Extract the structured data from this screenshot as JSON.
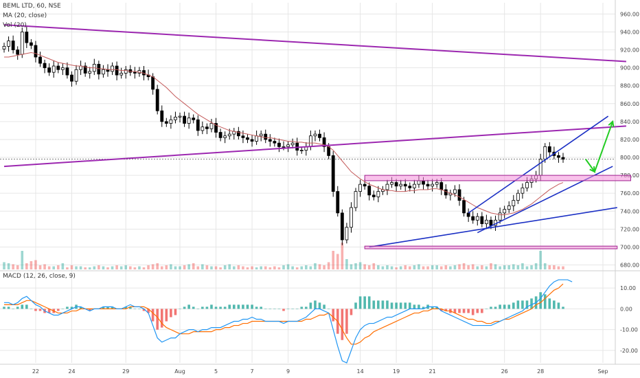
{
  "header": {
    "symbol": "BEML LTD, 60, NSE",
    "ma": "MA (20, close)",
    "vol": "Vol (20)",
    "macd": "MACD (12, 26, close, 9)"
  },
  "colors": {
    "up": "#26a69a",
    "down": "#ef5350",
    "candle": "#000000",
    "ma": "#c45a5a",
    "macd": "#2196f3",
    "signal": "#ff6d00",
    "trend_purple": "#9c27b0",
    "channel_blue": "#1a2fc4",
    "zone_pink": "#f48fda",
    "arrow_green": "#22cc22",
    "grid": "#e6e6e6"
  },
  "chart_data": [
    {
      "type": "candlestick",
      "title": "BEML LTD, 60, NSE",
      "y_axis_ticks": [
        "960.00",
        "940.00",
        "920.00",
        "900.00",
        "880.00",
        "860.00",
        "840.00",
        "820.00",
        "800.00",
        "780.00",
        "760.00",
        "740.00",
        "720.00",
        "700.00",
        "680.00"
      ],
      "ylim": [
        675,
        968
      ],
      "x_axis_labels": [
        "22",
        "24",
        "29",
        "Aug",
        "5",
        "7",
        "9",
        "14",
        "19",
        "21",
        "26",
        "28",
        "Sep"
      ],
      "reference_line": 798,
      "close_series": [
        924,
        930,
        920,
        915,
        940,
        928,
        925,
        912,
        905,
        900,
        895,
        902,
        898,
        900,
        892,
        885,
        898,
        902,
        894,
        896,
        904,
        893,
        898,
        896,
        902,
        892,
        894,
        898,
        895,
        894,
        897,
        892,
        890,
        876,
        852,
        840,
        838,
        842,
        845,
        846,
        838,
        844,
        842,
        830,
        834,
        832,
        838,
        828,
        822,
        824,
        826,
        829,
        824,
        822,
        820,
        818,
        824,
        826,
        820,
        818,
        816,
        812,
        812,
        814,
        816,
        808,
        808,
        812,
        824,
        826,
        822,
        812,
        802,
        762,
        738,
        708,
        722,
        744,
        762,
        770,
        768,
        758,
        756,
        762,
        764,
        770,
        772,
        768,
        770,
        768,
        766,
        770,
        774,
        770,
        768,
        770,
        772,
        764,
        758,
        760,
        764,
        752,
        738,
        734,
        730,
        734,
        726,
        730,
        724,
        730,
        738,
        742,
        746,
        752,
        760,
        766,
        772,
        776,
        780,
        798,
        812,
        806,
        802,
        800,
        798
      ],
      "ma_series": [
        912,
        912,
        913,
        914,
        915,
        916,
        917,
        916,
        914,
        912,
        910,
        908,
        906,
        905,
        904,
        903,
        902,
        902,
        901,
        900,
        900,
        899,
        899,
        898,
        898,
        898,
        897,
        897,
        896,
        896,
        895,
        894,
        892,
        890,
        886,
        882,
        878,
        873,
        868,
        864,
        860,
        856,
        852,
        848,
        845,
        842,
        839,
        836,
        834,
        832,
        830,
        829,
        828,
        827,
        826,
        825,
        824,
        823,
        822,
        822,
        821,
        820,
        819,
        818,
        818,
        817,
        817,
        816,
        816,
        816,
        815,
        814,
        812,
        808,
        802,
        796,
        790,
        784,
        780,
        776,
        773,
        770,
        768,
        766,
        764,
        763,
        763,
        762,
        762,
        762,
        763,
        763,
        764,
        764,
        764,
        765,
        765,
        764,
        762,
        760,
        758,
        756,
        753,
        750,
        747,
        744,
        742,
        740,
        738,
        737,
        736,
        736,
        737,
        738,
        740,
        742,
        745,
        748,
        752,
        756,
        760,
        764,
        767,
        770,
        772
      ],
      "annotations": [
        {
          "kind": "trendline",
          "color": "purple",
          "from": [
            0,
            948
          ],
          "to": [
            138,
            907
          ]
        },
        {
          "kind": "trendline",
          "color": "purple",
          "from": [
            0,
            790
          ],
          "to": [
            138,
            835
          ]
        },
        {
          "kind": "trendline",
          "color": "blue",
          "from": [
            105,
            716
          ],
          "to": [
            135,
            790
          ]
        },
        {
          "kind": "trendline",
          "color": "blue",
          "from": [
            103,
            738
          ],
          "to": [
            134,
            846
          ]
        },
        {
          "kind": "trendline",
          "color": "blue",
          "from": [
            81,
            700
          ],
          "to": [
            136,
            744
          ]
        },
        {
          "kind": "zone",
          "color": "pink",
          "from": [
            80,
            780
          ],
          "to": [
            139,
            774
          ]
        },
        {
          "kind": "zone",
          "color": "pink",
          "from": [
            80,
            701
          ],
          "to": [
            136,
            698
          ]
        },
        {
          "kind": "arrow",
          "color": "green",
          "points": [
            [
              129,
              798
            ],
            [
              131,
              784
            ],
            [
              135,
              840
            ]
          ]
        }
      ]
    },
    {
      "type": "bar",
      "title": "Vol (20)",
      "values": [
        7,
        6,
        5,
        4,
        18,
        6,
        8,
        9,
        4,
        5,
        3,
        3,
        4,
        6,
        2,
        4,
        3,
        3,
        2,
        2,
        3,
        4,
        3,
        2,
        3,
        4,
        3,
        4,
        3,
        2,
        3,
        2,
        4,
        5,
        6,
        3,
        4,
        5,
        3,
        3,
        4,
        5,
        6,
        3,
        5,
        4,
        3,
        3,
        2,
        4,
        5,
        3,
        4,
        3,
        2,
        3,
        2,
        3,
        3,
        2,
        3,
        2,
        4,
        5,
        3,
        2,
        3,
        4,
        3,
        6,
        5,
        4,
        7,
        18,
        15,
        26,
        10,
        5,
        6,
        7,
        5,
        4,
        6,
        4,
        3,
        4,
        3,
        2,
        3,
        4,
        3,
        4,
        5,
        3,
        3,
        4,
        4,
        3,
        4,
        3,
        4,
        5,
        6,
        4,
        5,
        3,
        4,
        3,
        6,
        5,
        3,
        4,
        4,
        5,
        4,
        6,
        3,
        4,
        6,
        18,
        6,
        4,
        4,
        3,
        3
      ],
      "ylim": [
        0,
        40
      ]
    },
    {
      "type": "line",
      "title": "MACD (12, 26, close, 9)",
      "y_axis_ticks": [
        "10.00",
        "0.00",
        "-10.00",
        "-20.00"
      ],
      "ylim": [
        -26,
        17
      ],
      "macd": [
        3,
        3,
        2,
        3,
        5,
        6,
        4,
        2,
        1,
        -1,
        -2,
        -3,
        -3,
        -2,
        -1,
        0,
        1,
        1,
        0,
        -1,
        0,
        0,
        1,
        1,
        1,
        0,
        0,
        1,
        2,
        1,
        1,
        0,
        -2,
        -8,
        -14,
        -16,
        -15,
        -14,
        -14,
        -12,
        -11,
        -10,
        -10,
        -11,
        -10,
        -10,
        -9,
        -9,
        -9,
        -8,
        -7,
        -6,
        -6,
        -5,
        -5,
        -4,
        -5,
        -5,
        -6,
        -6,
        -6,
        -6,
        -7,
        -6,
        -6,
        -6,
        -5,
        -4,
        -2,
        0,
        0,
        -1,
        -2,
        -10,
        -18,
        -25,
        -26,
        -20,
        -14,
        -10,
        -8,
        -7,
        -7,
        -6,
        -5,
        -4,
        -4,
        -3,
        -2,
        -1,
        0,
        0,
        0,
        0,
        1,
        1,
        1,
        -1,
        -2,
        -3,
        -4,
        -5,
        -6,
        -7,
        -8,
        -8,
        -8,
        -8,
        -8,
        -7,
        -6,
        -5,
        -4,
        -3,
        -2,
        -1,
        1,
        2,
        3,
        5,
        8,
        11,
        13,
        14,
        14,
        14,
        13
      ],
      "signal": [
        2,
        2,
        2,
        2,
        3,
        4,
        4,
        3,
        2,
        1,
        0,
        -1,
        -2,
        -2,
        -2,
        -1,
        -1,
        0,
        0,
        0,
        0,
        0,
        0,
        0,
        0,
        0,
        0,
        0,
        1,
        1,
        1,
        1,
        0,
        -2,
        -4,
        -7,
        -9,
        -10,
        -11,
        -12,
        -12,
        -12,
        -11,
        -11,
        -11,
        -11,
        -11,
        -10,
        -10,
        -9,
        -9,
        -8,
        -8,
        -7,
        -7,
        -6,
        -6,
        -6,
        -6,
        -6,
        -6,
        -6,
        -6,
        -6,
        -6,
        -6,
        -6,
        -5,
        -5,
        -4,
        -3,
        -3,
        -2,
        -4,
        -6,
        -10,
        -14,
        -17,
        -17,
        -16,
        -14,
        -13,
        -11,
        -10,
        -9,
        -8,
        -7,
        -6,
        -5,
        -4,
        -3,
        -2,
        -2,
        -1,
        -1,
        0,
        0,
        0,
        -1,
        -1,
        -2,
        -3,
        -4,
        -5,
        -5,
        -6,
        -6,
        -7,
        -7,
        -6,
        -6,
        -5,
        -5,
        -4,
        -3,
        -2,
        -1,
        0,
        2,
        3,
        5,
        7,
        9,
        10,
        12
      ],
      "histogram": [
        1,
        1,
        0,
        1,
        2,
        2,
        0,
        -1,
        -1,
        -2,
        -2,
        -2,
        -1,
        0,
        1,
        1,
        2,
        1,
        0,
        -1,
        0,
        0,
        1,
        1,
        1,
        0,
        0,
        1,
        1,
        0,
        0,
        -1,
        -2,
        -6,
        -10,
        -9,
        -6,
        -4,
        -3,
        0,
        1,
        2,
        1,
        0,
        1,
        1,
        2,
        1,
        1,
        1,
        2,
        2,
        2,
        2,
        2,
        2,
        1,
        1,
        0,
        0,
        0,
        0,
        -1,
        0,
        0,
        0,
        1,
        1,
        3,
        4,
        3,
        2,
        0,
        -6,
        -12,
        -15,
        -12,
        -3,
        3,
        6,
        6,
        6,
        4,
        4,
        4,
        4,
        3,
        3,
        3,
        3,
        3,
        2,
        2,
        1,
        2,
        1,
        1,
        -1,
        -1,
        -2,
        -2,
        -2,
        -2,
        -2,
        -3,
        -2,
        -2,
        0,
        1,
        1,
        2,
        2,
        2,
        3,
        4,
        4,
        4,
        5,
        6,
        8,
        7,
        5,
        4,
        3,
        1
      ]
    }
  ]
}
